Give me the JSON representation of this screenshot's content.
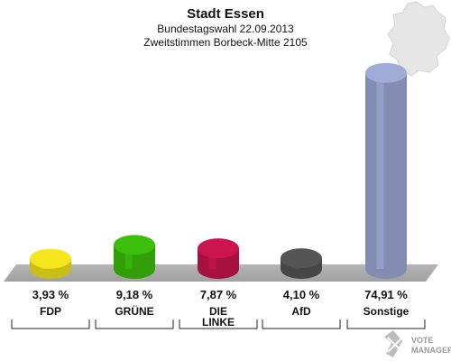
{
  "header": {
    "title": "Stadt Essen",
    "subtitle1": "Bundestagswahl 22.09.2013",
    "subtitle2": "Zweitstimmen Borbeck-Mitte 2105"
  },
  "chart_data": {
    "type": "bar",
    "title": "Stadt Essen",
    "categories": [
      "FDP",
      "GRÜNE",
      "DIE LINKE",
      "AfD",
      "Sonstige"
    ],
    "category_lines": [
      [
        "FDP"
      ],
      [
        "GRÜNE"
      ],
      [
        "DIE",
        "LINKE"
      ],
      [
        "AfD"
      ],
      [
        "Sonstige"
      ]
    ],
    "values": [
      3.93,
      9.18,
      7.87,
      4.1,
      74.91
    ],
    "value_labels": [
      "3,93 %",
      "9,18 %",
      "7,87 %",
      "4,10 %",
      "74,91 %"
    ],
    "colors": [
      "#f5e61e",
      "#3cbf0a",
      "#cc1550",
      "#555555",
      "#a0acd8"
    ],
    "ylim": [
      0,
      80
    ],
    "grid": false,
    "legend": "none"
  },
  "branding": {
    "logo_line1": "VOTE",
    "logo_line2": "MANAGER"
  }
}
